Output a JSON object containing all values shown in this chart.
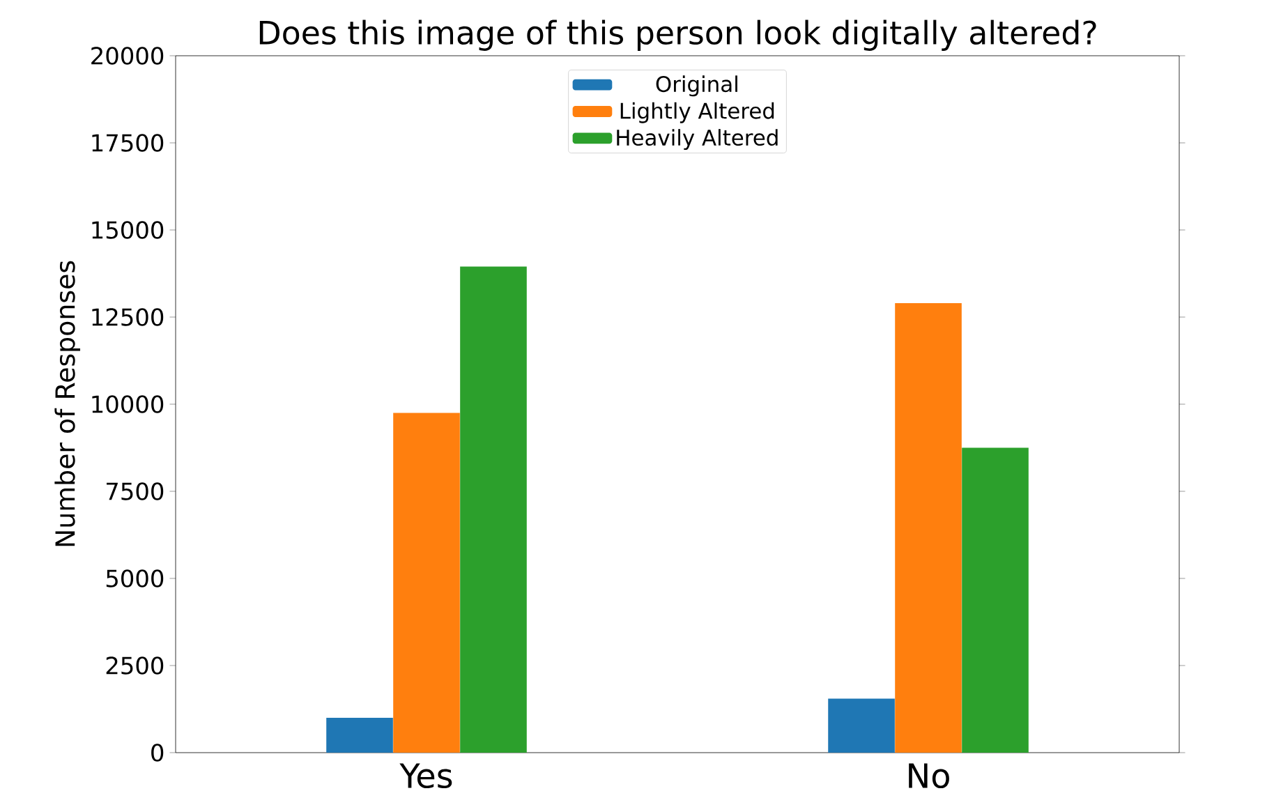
{
  "chart_data": {
    "type": "bar",
    "title": "Does this image of this person look digitally altered?",
    "ylabel": "Number of Responses",
    "categories": [
      "Yes",
      "No"
    ],
    "series": [
      {
        "name": "Original",
        "color": "#1f77b4",
        "values": [
          1000,
          1550
        ]
      },
      {
        "name": "Lightly Altered",
        "color": "#ff7f0e",
        "values": [
          9750,
          12900
        ]
      },
      {
        "name": "Heavily Altered",
        "color": "#2ca02c",
        "values": [
          13950,
          8750
        ]
      }
    ],
    "ylim": [
      0,
      20000
    ],
    "yticks": [
      0,
      2500,
      5000,
      7500,
      10000,
      12500,
      15000,
      17500,
      20000
    ],
    "legend": "top",
    "grid": false
  }
}
